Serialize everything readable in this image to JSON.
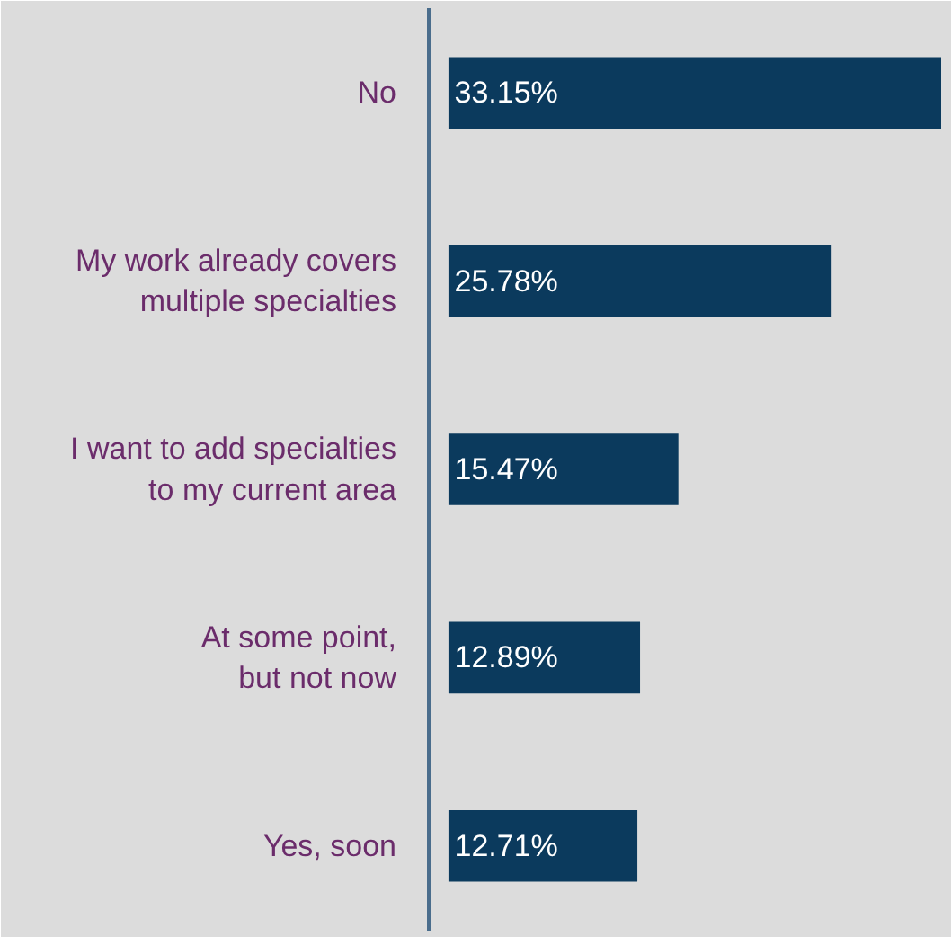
{
  "chart_data": {
    "type": "bar",
    "orientation": "horizontal",
    "categories": [
      "No",
      "My work already covers\nmultiple specialties",
      "I want to add specialties\nto my current area",
      "At some point,\nbut not now",
      "Yes, soon"
    ],
    "values": [
      33.15,
      25.78,
      15.47,
      12.89,
      12.71
    ],
    "value_labels": [
      "33.15%",
      "25.78%",
      "15.47%",
      "12.89%",
      "12.71%"
    ],
    "color": "#0b3a5d"
  }
}
